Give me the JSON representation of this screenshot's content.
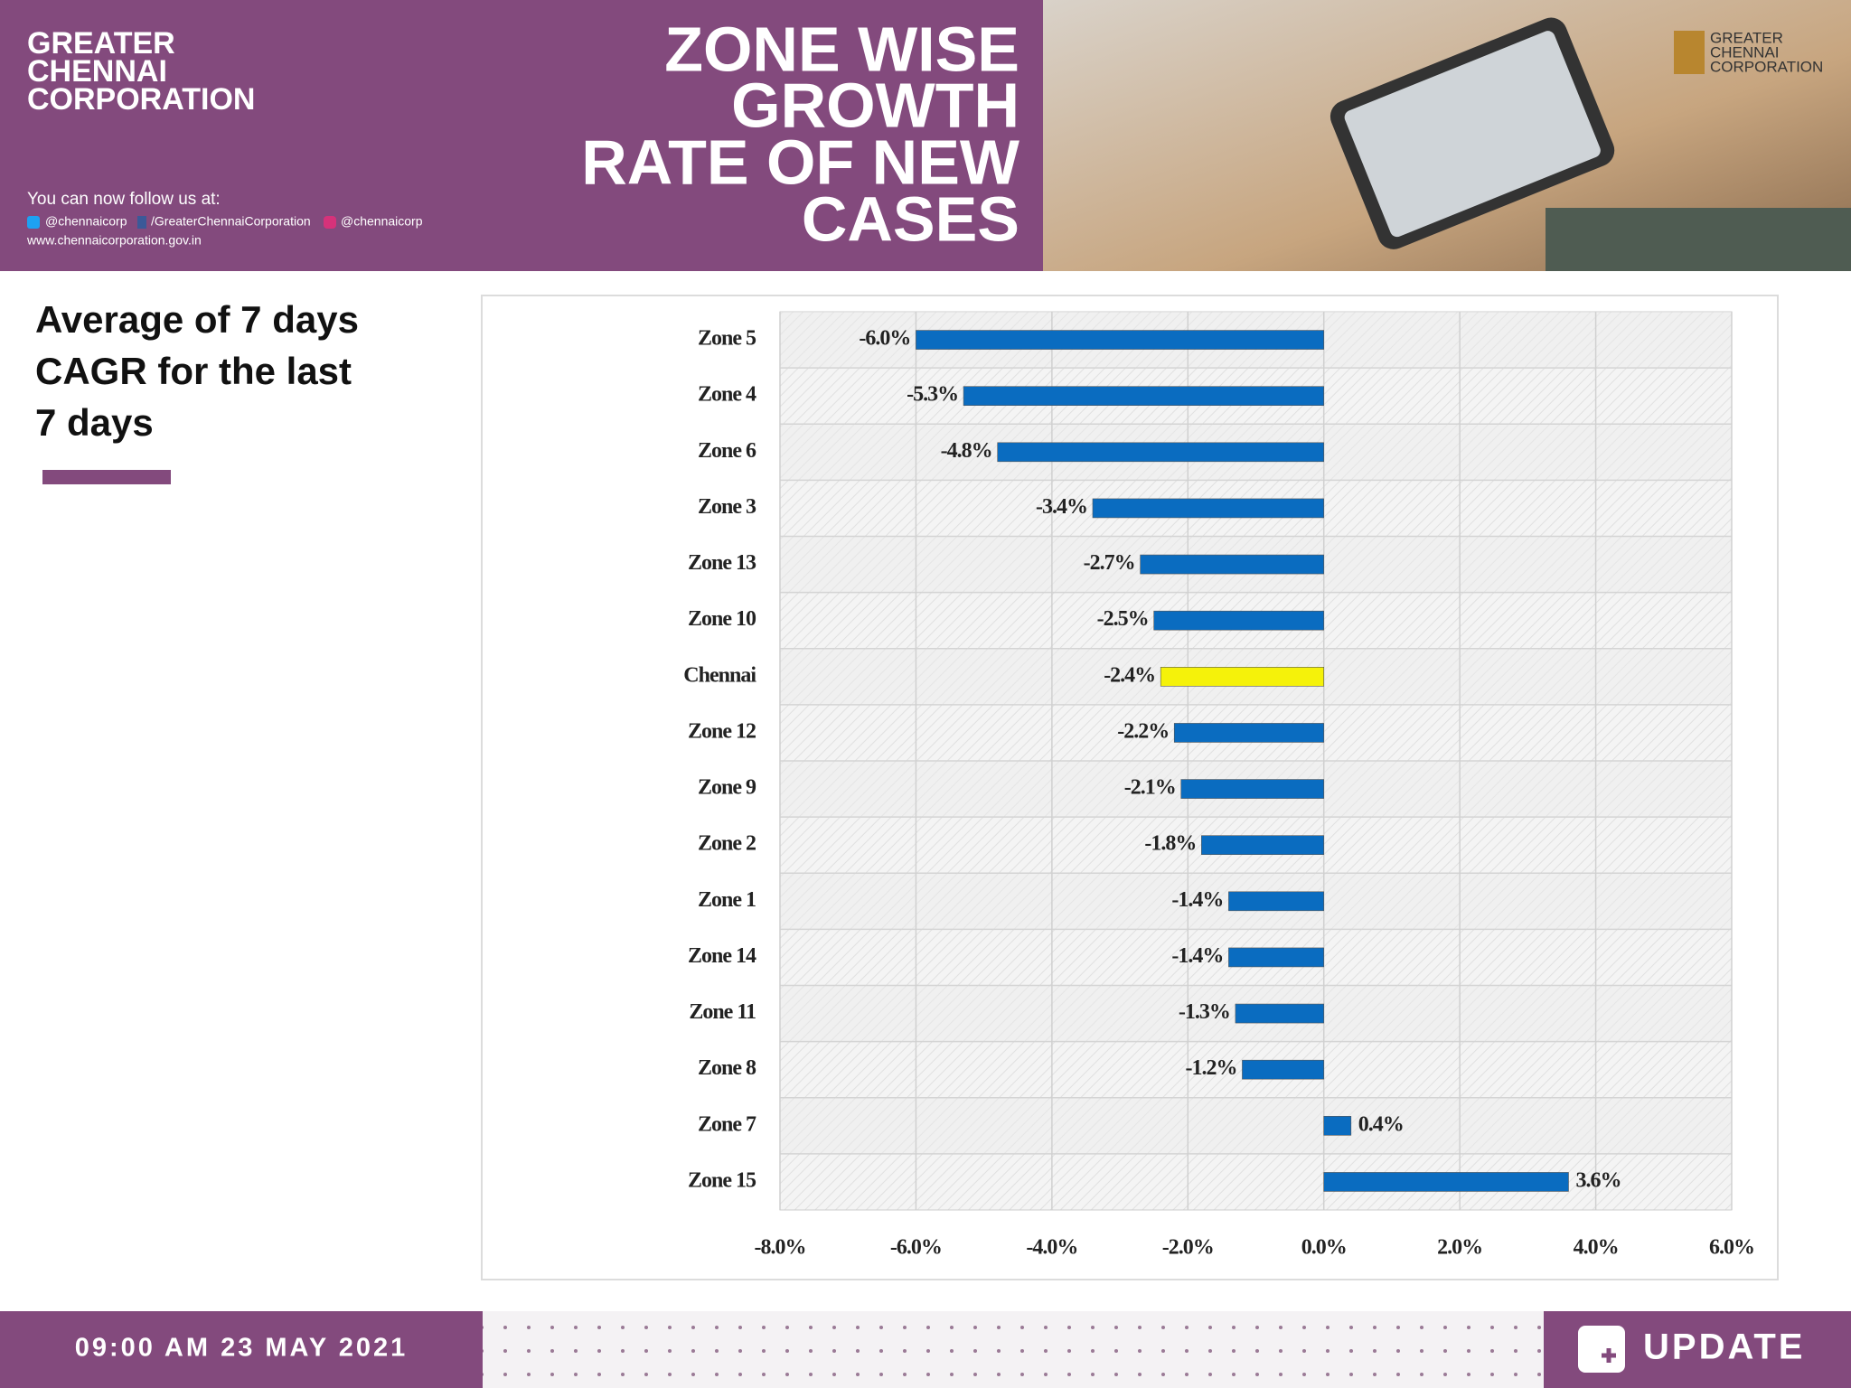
{
  "header": {
    "org": [
      "GREATER",
      "CHENNAI",
      "CORPORATION"
    ],
    "follow": "You can now follow us at:",
    "social": [
      "@chennaicorp",
      "/GreaterChennaiCorporation",
      "@chennaicorp"
    ],
    "website": "www.chennaicorporation.gov.in",
    "title": [
      "ZONE WISE",
      "GROWTH",
      "RATE OF NEW",
      "CASES"
    ],
    "logo": [
      "GREATER",
      "CHENNAI",
      "CORPORATION"
    ]
  },
  "subtitle": [
    "Average of 7 days",
    "CAGR for the last",
    "7 days"
  ],
  "chart_data": {
    "type": "bar",
    "orientation": "horizontal",
    "categories": [
      "Zone 5",
      "Zone 4",
      "Zone 6",
      "Zone 3",
      "Zone 13",
      "Zone 10",
      "Chennai",
      "Zone 12",
      "Zone 9",
      "Zone 2",
      "Zone 1",
      "Zone 14",
      "Zone 11",
      "Zone 8",
      "Zone 7",
      "Zone 15"
    ],
    "values": [
      -6.0,
      -5.3,
      -4.8,
      -3.4,
      -2.7,
      -2.5,
      -2.4,
      -2.2,
      -2.1,
      -1.8,
      -1.4,
      -1.4,
      -1.3,
      -1.2,
      0.4,
      3.6
    ],
    "value_labels": [
      "-6.0%",
      "-5.3%",
      "-4.8%",
      "-3.4%",
      "-2.7%",
      "-2.5%",
      "-2.4%",
      "-2.2%",
      "-2.1%",
      "-1.8%",
      "-1.4%",
      "-1.4%",
      "-1.3%",
      "-1.2%",
      "0.4%",
      "3.6%"
    ],
    "colors": [
      "#0a6cc0",
      "#0a6cc0",
      "#0a6cc0",
      "#0a6cc0",
      "#0a6cc0",
      "#0a6cc0",
      "#f5f20a",
      "#0a6cc0",
      "#0a6cc0",
      "#0a6cc0",
      "#0a6cc0",
      "#0a6cc0",
      "#0a6cc0",
      "#0a6cc0",
      "#0a6cc0",
      "#0a6cc0"
    ],
    "xlim": [
      -8,
      6
    ],
    "xticks": [
      {
        "value": -8,
        "label": "-8.0%"
      },
      {
        "value": -6,
        "label": "-6.0%"
      },
      {
        "value": -4,
        "label": "-4.0%"
      },
      {
        "value": -2,
        "label": "-2.0%"
      },
      {
        "value": 0,
        "label": "0.0%"
      },
      {
        "value": 2,
        "label": "2.0%"
      },
      {
        "value": 4,
        "label": "4.0%"
      },
      {
        "value": 6,
        "label": "6.0%"
      }
    ],
    "grid": true
  },
  "footer": {
    "date": "09:00 AM 23 MAY 2021",
    "button": "UPDATE"
  }
}
